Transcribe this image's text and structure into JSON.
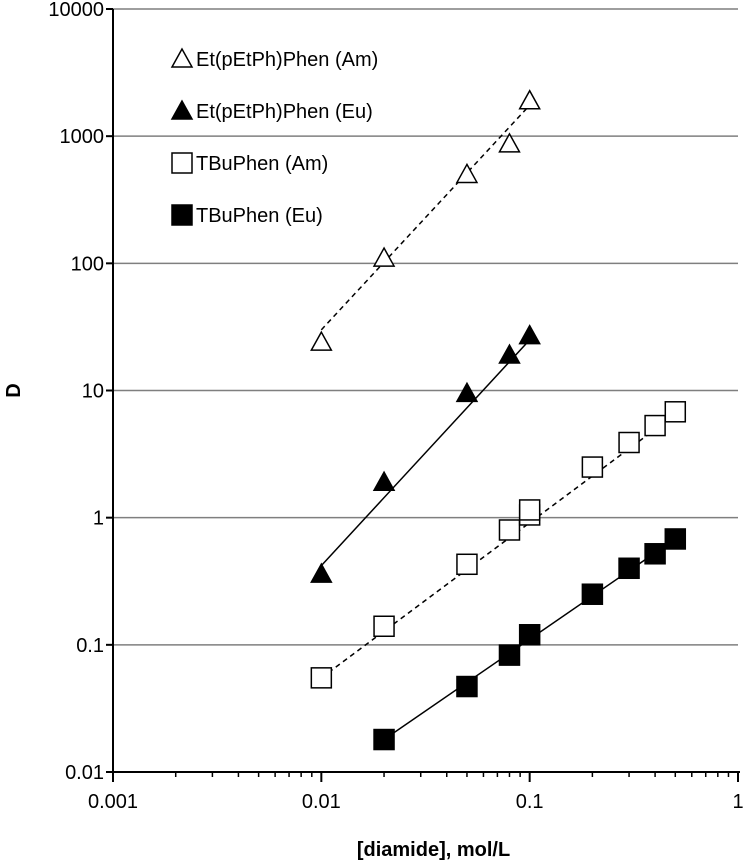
{
  "chart_data": {
    "type": "scatter",
    "title": "",
    "xlabel": "[diamide], mol/L",
    "ylabel": "D",
    "x_scale": "log",
    "y_scale": "log",
    "xlim": [
      0.001,
      1
    ],
    "ylim": [
      0.01,
      10000
    ],
    "x_ticks": [
      "0.001",
      "0.01",
      "0.1",
      "1"
    ],
    "y_ticks": [
      "0.01",
      "0.1",
      "1",
      "10",
      "100",
      "1000",
      "10000"
    ],
    "grid": "horizontal major gridlines",
    "legend_position": "top-left",
    "series": [
      {
        "name": "Et(pEtPh)Phen (Am)",
        "marker": "open-triangle",
        "fit_line": "dashed",
        "x": [
          0.01,
          0.02,
          0.05,
          0.08,
          0.1
        ],
        "y": [
          24,
          110,
          500,
          870,
          1900
        ],
        "fit": {
          "x": [
            0.01,
            0.1
          ],
          "y": [
            30,
            1750
          ]
        }
      },
      {
        "name": "Et(pEtPh)Phen (Eu)",
        "marker": "filled-triangle",
        "fit_line": "solid",
        "x": [
          0.01,
          0.02,
          0.05,
          0.08,
          0.1
        ],
        "y": [
          0.36,
          1.9,
          9.5,
          19,
          27
        ],
        "fit": {
          "x": [
            0.01,
            0.1
          ],
          "y": [
            0.42,
            25
          ]
        }
      },
      {
        "name": "TBuPhen (Am)",
        "marker": "open-square",
        "fit_line": "dashed",
        "x": [
          0.01,
          0.02,
          0.05,
          0.08,
          0.1,
          0.1,
          0.2,
          0.3,
          0.4,
          0.5
        ],
        "y": [
          0.055,
          0.14,
          0.43,
          0.8,
          1.05,
          1.15,
          2.5,
          3.9,
          5.3,
          6.8
        ],
        "fit": {
          "x": [
            0.01,
            0.5
          ],
          "y": [
            0.055,
            6.5
          ]
        }
      },
      {
        "name": "TBuPhen (Eu)",
        "marker": "filled-square",
        "fit_line": "solid",
        "x": [
          0.02,
          0.05,
          0.08,
          0.1,
          0.2,
          0.3,
          0.4,
          0.5
        ],
        "y": [
          0.018,
          0.047,
          0.083,
          0.12,
          0.25,
          0.4,
          0.52,
          0.68
        ],
        "fit": {
          "x": [
            0.02,
            0.5
          ],
          "y": [
            0.018,
            0.68
          ]
        }
      }
    ]
  }
}
